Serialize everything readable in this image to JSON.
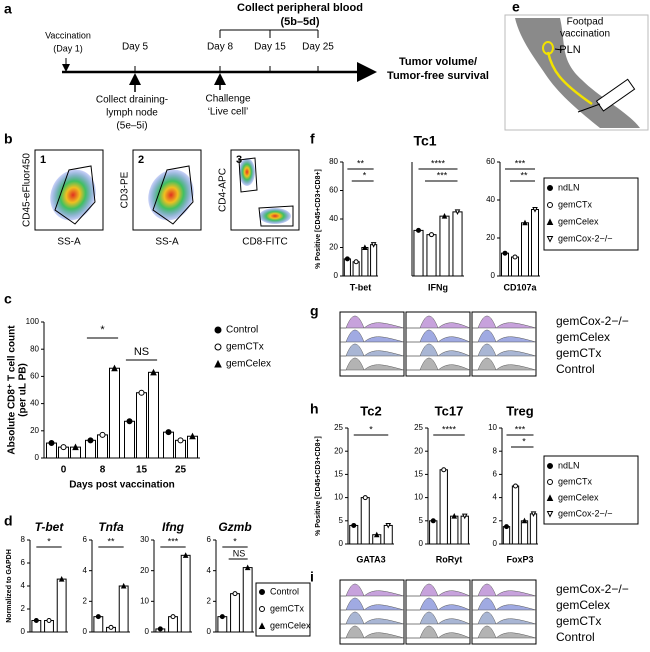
{
  "panel_labels": [
    "a",
    "b",
    "c",
    "d",
    "e",
    "f",
    "g",
    "h",
    "i"
  ],
  "timeline": {
    "start": [
      "Vaccination",
      "(Day 1)"
    ],
    "days": [
      "Day 5",
      "Day 8",
      "Day 15",
      "Day 25"
    ],
    "blood": [
      "Collect peripheral blood",
      "(5b–5d)"
    ],
    "lymph": [
      "Collect draining-",
      "lymph node",
      "(5e–5i)"
    ],
    "challenge": [
      "Challenge",
      "‘Live cell’"
    ],
    "outcome": [
      "Tumor volume/",
      "Tumor-free survival"
    ]
  },
  "footpad": {
    "title": [
      "Footpad",
      "vaccination"
    ],
    "node": "PLN"
  },
  "flow": {
    "plots": [
      {
        "gate": "1",
        "ylabel": "CD45-eFluor450",
        "xlabel": "SS-A"
      },
      {
        "gate": "2",
        "ylabel": "CD3-PE",
        "xlabel": "SS-A"
      },
      {
        "gate": "3",
        "ylabel": "CD4-APC",
        "xlabel": "CD8-FITC"
      }
    ]
  },
  "histograms": [
    {
      "legend": [
        "gemCox-2−/−",
        "gemCelex",
        "gemCTx",
        "Control"
      ]
    },
    {
      "legend": [
        "gemCox-2−/−",
        "gemCelex",
        "gemCTx",
        "Control"
      ]
    }
  ],
  "chart_data": [
    {
      "type": "bar",
      "ylabel": [
        "Absolute CD8⁺ T cell count",
        "(per uL PB)"
      ],
      "xlabel": "Days post vaccination",
      "categories": [
        "0",
        "8",
        "15",
        "25"
      ],
      "series": [
        {
          "name": "Control",
          "color": "#ffffff",
          "marker": "filled-circle",
          "values": [
            11,
            13,
            27,
            19
          ]
        },
        {
          "name": "gemCTx",
          "color": "#ffffff",
          "marker": "open-circle",
          "values": [
            8,
            17,
            48,
            13
          ]
        },
        {
          "name": "gemCelex",
          "color": "#ffffff",
          "marker": "triangle",
          "values": [
            8,
            66,
            63,
            16
          ]
        }
      ],
      "ylim": [
        0,
        100
      ],
      "yticks": [
        0,
        20,
        40,
        60,
        80,
        100
      ],
      "annotations": [
        "*",
        "NS"
      ]
    },
    {
      "type": "bar-panels",
      "ylabel": "Normalized to GAPDH",
      "legend": [
        {
          "name": "Control",
          "color": "#ffffff",
          "marker": "filled-circle"
        },
        {
          "name": "gemCTx",
          "color": "#ffffff",
          "marker": "open-circle"
        },
        {
          "name": "gemCelex",
          "color": "#ffffff",
          "marker": "triangle"
        }
      ],
      "panels": [
        {
          "title": "T-bet",
          "ylim": [
            0,
            8
          ],
          "yticks": [
            0,
            2,
            4,
            6,
            8
          ],
          "values": [
            1,
            1,
            4.6
          ],
          "annotations": [
            "*"
          ]
        },
        {
          "title": "Tnfa",
          "ylim": [
            0,
            6
          ],
          "yticks": [
            0,
            2,
            4,
            6
          ],
          "values": [
            1,
            0.3,
            3
          ],
          "annotations": [
            "**"
          ]
        },
        {
          "title": "Ifng",
          "ylim": [
            0,
            30
          ],
          "yticks": [
            0,
            10,
            20,
            30
          ],
          "values": [
            1,
            5,
            25
          ],
          "annotations": [
            "***"
          ]
        },
        {
          "title": "Gzmb",
          "ylim": [
            0,
            6
          ],
          "yticks": [
            0,
            2,
            4,
            6
          ],
          "values": [
            1,
            2.5,
            4.2
          ],
          "annotations": [
            "*",
            "NS"
          ]
        }
      ]
    },
    {
      "type": "bar-panels",
      "title": "Tc1",
      "ylabel": "% Positive [CD45+CD3+CD8+]",
      "legend": [
        {
          "name": "ndLN",
          "color": "#ffffff",
          "marker": "filled-circle"
        },
        {
          "name": "gemCTx",
          "color": "#ffffff",
          "marker": "open-circle"
        },
        {
          "name": "gemCelex",
          "color": "#ffffff",
          "marker": "triangle"
        },
        {
          "name": "gemCox-2−/−",
          "color": "#ffffff",
          "marker": "open-down-triangle"
        }
      ],
      "panels": [
        {
          "label": "T-bet",
          "ylim": [
            0,
            80
          ],
          "yticks": [
            0,
            20,
            40,
            60,
            80
          ],
          "values": [
            12,
            10,
            20,
            22
          ],
          "annotations": [
            "**",
            "*"
          ]
        },
        {
          "label": "IFNg",
          "ylim": [
            0,
            80
          ],
          "values": [
            32,
            29,
            42,
            45
          ],
          "annotations": [
            "****",
            "***"
          ]
        },
        {
          "label": "CD107a",
          "ylim": [
            0,
            60
          ],
          "yticks": [
            0,
            20,
            40,
            60
          ],
          "values": [
            12,
            10,
            28,
            35
          ],
          "annotations": [
            "***",
            "**"
          ]
        }
      ]
    },
    {
      "type": "bar-panels",
      "ylabel": "% Positive [CD45+CD3+CD8+]",
      "legend": [
        {
          "name": "ndLN",
          "color": "#ffffff",
          "marker": "filled-circle"
        },
        {
          "name": "gemCTx",
          "color": "#ffffff",
          "marker": "open-circle"
        },
        {
          "name": "gemCelex",
          "color": "#ffffff",
          "marker": "triangle"
        },
        {
          "name": "gemCox-2−/−",
          "color": "#ffffff",
          "marker": "open-down-triangle"
        }
      ],
      "panels": [
        {
          "title": "Tc2",
          "label": "GATA3",
          "ylim": [
            0,
            25
          ],
          "yticks": [
            0,
            5,
            10,
            15,
            20,
            25
          ],
          "values": [
            4,
            10,
            2,
            4
          ],
          "annotations": [
            "*"
          ]
        },
        {
          "title": "Tc17",
          "label": "RoRyt",
          "ylim": [
            0,
            25
          ],
          "yticks": [
            0,
            5,
            10,
            15,
            20,
            25
          ],
          "values": [
            5,
            16,
            6,
            6
          ],
          "annotations": [
            "****"
          ]
        },
        {
          "title": "Treg",
          "label": "FoxP3",
          "ylim": [
            0,
            10
          ],
          "yticks": [
            0,
            2,
            4,
            6,
            8,
            10
          ],
          "values": [
            1.5,
            5,
            2,
            2.6
          ],
          "annotations": [
            "***",
            "*"
          ]
        }
      ]
    }
  ]
}
